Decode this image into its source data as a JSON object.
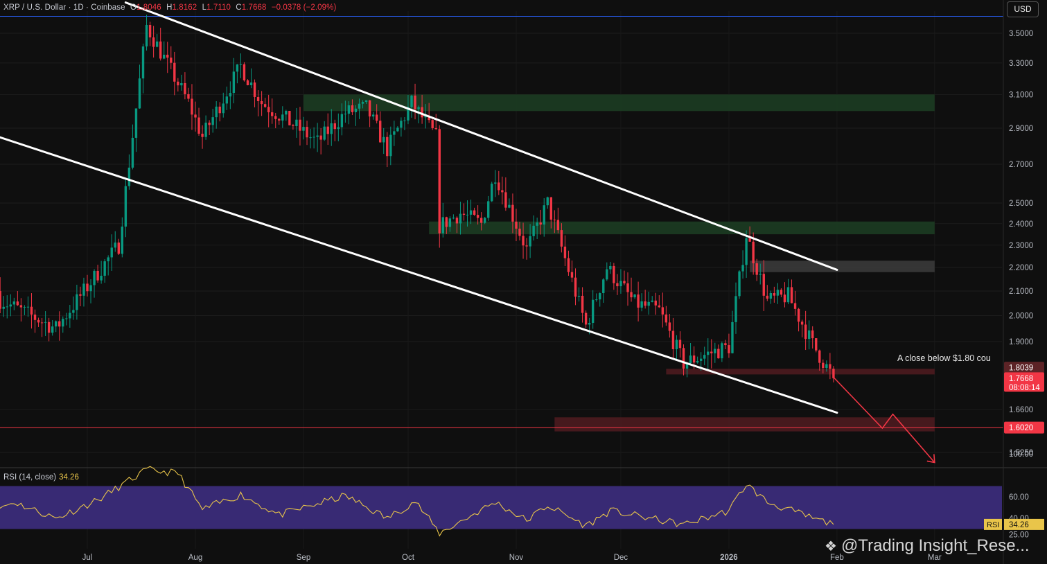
{
  "header": {
    "symbol": "XRP / U.S. Dollar · 1D · Coinbase",
    "o_label": "O",
    "o": "1.8046",
    "h_label": "H",
    "h": "1.8162",
    "l_label": "L",
    "l": "1.7110",
    "c_label": "C",
    "c": "1.7668",
    "change": "−0.0378 (−2.09%)"
  },
  "currency_button": "USD",
  "annotation": "A close below $1.80 cou",
  "price_badges": [
    {
      "value": "1.8039",
      "color": "#5c2326"
    },
    {
      "value": "1.7668",
      "sub": "08:08:14",
      "color": "#f23645"
    },
    {
      "value": "1.6020",
      "color": "#f23645"
    }
  ],
  "rsi": {
    "title": "RSI (14, close)",
    "value": "34.26",
    "badge_label": "RSI",
    "ticks": [
      "100.00",
      "60.00",
      "40.00",
      "25.00"
    ]
  },
  "watermark": {
    "icon": "binance-logo-icon",
    "text": "@Trading Insight_Rese..."
  },
  "colors": {
    "up": "#089981",
    "down": "#f23645",
    "background": "#0f0f0f",
    "resistance_zone": "#1b3a22",
    "support_zone": "#4a1a1f",
    "rsi_band": "#3f2f86",
    "rsi_line": "#e9c54a",
    "channel": "#ffffff"
  },
  "chart_data": {
    "type": "candlestick",
    "scale": "log",
    "price_ticks": [
      3.5,
      3.3,
      3.1,
      2.9,
      2.7,
      2.5,
      2.4,
      2.3,
      2.2,
      2.1,
      2.0,
      1.9,
      1.66,
      1.525
    ],
    "price_tick_labels": [
      "3.5000",
      "3.3000",
      "3.1000",
      "2.9000",
      "2.7000",
      "2.5000",
      "2.4000",
      "2.3000",
      "2.2000",
      "2.1000",
      "2.0000",
      "1.9000",
      "1.6600",
      "1.5250"
    ],
    "x_labels": [
      "Jul",
      "Aug",
      "Sep",
      "Oct",
      "Nov",
      "Dec",
      "2026",
      "Feb",
      "Mar"
    ],
    "x_label_dates": [
      "2025-07-01",
      "2025-08-01",
      "2025-09-01",
      "2025-10-01",
      "2025-11-01",
      "2025-12-01",
      "2026-01-01",
      "2026-02-01",
      "2026-03-01"
    ],
    "zones": [
      {
        "type": "resistance",
        "from": 3.0,
        "to": 3.1,
        "start": "2025-09-01",
        "end": "2026-03-01"
      },
      {
        "type": "resistance",
        "from": 2.35,
        "to": 2.41,
        "start": "2025-10-07",
        "end": "2026-03-01"
      },
      {
        "type": "neutral",
        "from": 2.18,
        "to": 2.23,
        "start": "2026-01-07",
        "end": "2026-03-01"
      },
      {
        "type": "support",
        "from": 1.78,
        "to": 1.8,
        "start": "2025-12-14",
        "end": "2026-03-01"
      },
      {
        "type": "support",
        "from": 1.59,
        "to": 1.635,
        "start": "2025-11-12",
        "end": "2026-03-01"
      }
    ],
    "channel_upper": [
      {
        "date": "2025-07-12",
        "price": 3.72
      },
      {
        "date": "2026-02-01",
        "price": 2.19
      }
    ],
    "channel_lower": [
      {
        "date": "2025-06-01",
        "price": 2.88
      },
      {
        "date": "2026-02-01",
        "price": 1.65
      }
    ],
    "horizontal_lines": [
      {
        "price": 1.602,
        "color": "#f23645"
      },
      {
        "price": 3.62,
        "color": "#2962ff"
      }
    ],
    "projection_path": [
      {
        "date": "2026-01-31",
        "price": 1.77
      },
      {
        "date": "2026-02-14",
        "price": 1.6
      },
      {
        "date": "2026-02-17",
        "price": 1.645
      },
      {
        "date": "2026-03-01",
        "price": 1.495
      }
    ],
    "key_points": [
      {
        "date": "2025-06-01",
        "price": 2.1
      },
      {
        "date": "2025-06-22",
        "price": 1.95
      },
      {
        "date": "2025-07-10",
        "price": 2.3
      },
      {
        "date": "2025-07-18",
        "price": 3.55
      },
      {
        "date": "2025-07-30",
        "price": 3.05
      },
      {
        "date": "2025-08-03",
        "price": 2.85
      },
      {
        "date": "2025-08-14",
        "price": 3.28
      },
      {
        "date": "2025-08-20",
        "price": 3.05
      },
      {
        "date": "2025-08-27",
        "price": 2.95
      },
      {
        "date": "2025-09-05",
        "price": 2.82
      },
      {
        "date": "2025-09-13",
        "price": 2.99
      },
      {
        "date": "2025-09-19",
        "price": 3.02
      },
      {
        "date": "2025-09-25",
        "price": 2.78
      },
      {
        "date": "2025-10-02",
        "price": 3.05
      },
      {
        "date": "2025-10-09",
        "price": 2.85
      },
      {
        "date": "2025-10-10",
        "price": 2.39
      },
      {
        "date": "2025-10-16",
        "price": 2.45
      },
      {
        "date": "2025-10-22",
        "price": 2.4
      },
      {
        "date": "2025-10-26",
        "price": 2.65
      },
      {
        "date": "2025-11-04",
        "price": 2.28
      },
      {
        "date": "2025-11-10",
        "price": 2.5
      },
      {
        "date": "2025-11-21",
        "price": 1.96
      },
      {
        "date": "2025-11-27",
        "price": 2.2
      },
      {
        "date": "2025-12-05",
        "price": 2.05
      },
      {
        "date": "2025-12-12",
        "price": 2.02
      },
      {
        "date": "2025-12-19",
        "price": 1.82
      },
      {
        "date": "2025-12-25",
        "price": 1.85
      },
      {
        "date": "2026-01-01",
        "price": 1.88
      },
      {
        "date": "2026-01-06",
        "price": 2.35
      },
      {
        "date": "2026-01-12",
        "price": 2.06
      },
      {
        "date": "2026-01-18",
        "price": 2.08
      },
      {
        "date": "2026-01-25",
        "price": 1.89
      },
      {
        "date": "2026-01-31",
        "price": 1.7668
      }
    ],
    "rsi_band": [
      30,
      70
    ],
    "rsi_range": [
      20,
      100
    ],
    "rsi_points": [
      {
        "date": "2025-06-01",
        "value": 44
      },
      {
        "date": "2025-06-10",
        "value": 55
      },
      {
        "date": "2025-06-22",
        "value": 40
      },
      {
        "date": "2025-07-04",
        "value": 57
      },
      {
        "date": "2025-07-18",
        "value": 85
      },
      {
        "date": "2025-07-27",
        "value": 82
      },
      {
        "date": "2025-08-03",
        "value": 48
      },
      {
        "date": "2025-08-14",
        "value": 62
      },
      {
        "date": "2025-08-25",
        "value": 43
      },
      {
        "date": "2025-09-13",
        "value": 61
      },
      {
        "date": "2025-09-25",
        "value": 40
      },
      {
        "date": "2025-10-03",
        "value": 56
      },
      {
        "date": "2025-10-10",
        "value": 26
      },
      {
        "date": "2025-10-26",
        "value": 55
      },
      {
        "date": "2025-11-04",
        "value": 38
      },
      {
        "date": "2025-11-10",
        "value": 52
      },
      {
        "date": "2025-11-21",
        "value": 33
      },
      {
        "date": "2025-11-28",
        "value": 47
      },
      {
        "date": "2025-12-19",
        "value": 34
      },
      {
        "date": "2026-01-01",
        "value": 47
      },
      {
        "date": "2026-01-06",
        "value": 72
      },
      {
        "date": "2026-01-12",
        "value": 55
      },
      {
        "date": "2026-01-25",
        "value": 40
      },
      {
        "date": "2026-01-31",
        "value": 34.26
      }
    ]
  }
}
